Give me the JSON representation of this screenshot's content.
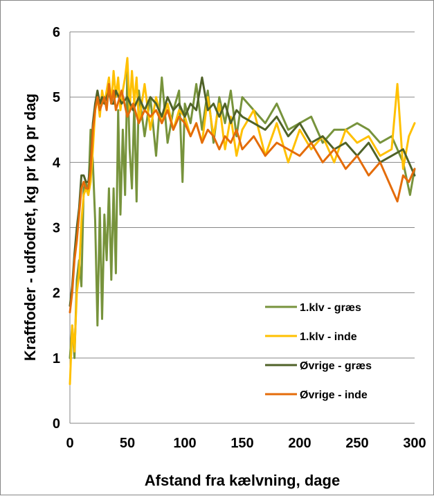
{
  "chart_data": {
    "type": "line",
    "title": "",
    "xlabel": "Afstand fra kælvning, dage",
    "ylabel": "Kraftfoder - udfodret, kg pr ko pr dag",
    "xlim": [
      0,
      300
    ],
    "ylim": [
      0,
      6
    ],
    "x_ticks": [
      "0",
      "50",
      "100",
      "150",
      "200",
      "250",
      "300"
    ],
    "y_ticks": [
      "0",
      "1",
      "2",
      "3",
      "4",
      "5",
      "6"
    ],
    "grid": "horizontal",
    "legend": "bottom-right",
    "series": [
      {
        "name": "1.klv - græs",
        "color": "#77933C",
        "x": [
          0,
          2,
          4,
          6,
          8,
          10,
          12,
          14,
          16,
          18,
          20,
          22,
          24,
          26,
          28,
          30,
          32,
          34,
          36,
          38,
          40,
          42,
          44,
          46,
          48,
          50,
          52,
          54,
          56,
          58,
          60,
          65,
          70,
          75,
          80,
          85,
          90,
          95,
          98,
          100,
          105,
          110,
          115,
          120,
          125,
          130,
          135,
          140,
          145,
          150,
          160,
          170,
          180,
          190,
          200,
          210,
          220,
          230,
          240,
          250,
          260,
          270,
          280,
          290,
          296,
          300
        ],
        "y": [
          1.0,
          1.5,
          1.0,
          2.2,
          2.5,
          2.1,
          3.6,
          3.7,
          3.5,
          4.5,
          4.0,
          3.1,
          1.5,
          3.3,
          1.6,
          3.2,
          2.5,
          3.6,
          2.2,
          3.6,
          2.3,
          4.8,
          3.2,
          4.5,
          3.5,
          5.4,
          4.2,
          3.6,
          4.9,
          3.4,
          5.1,
          4.4,
          5.0,
          4.1,
          5.3,
          4.3,
          4.8,
          5.1,
          3.7,
          4.9,
          4.6,
          5.2,
          4.5,
          5.1,
          4.3,
          5.0,
          4.6,
          5.1,
          4.4,
          5.0,
          4.8,
          4.6,
          4.9,
          4.5,
          4.6,
          4.7,
          4.3,
          4.5,
          4.5,
          4.6,
          4.5,
          4.3,
          4.4,
          4.0,
          3.5,
          3.9
        ]
      },
      {
        "name": "1.klv - inde",
        "color": "#FFC000",
        "x": [
          0,
          2,
          4,
          6,
          8,
          10,
          12,
          14,
          16,
          18,
          20,
          22,
          24,
          26,
          28,
          30,
          32,
          34,
          36,
          38,
          40,
          42,
          44,
          46,
          48,
          50,
          52,
          54,
          56,
          58,
          60,
          65,
          70,
          75,
          80,
          85,
          90,
          95,
          100,
          105,
          110,
          115,
          120,
          125,
          130,
          135,
          140,
          145,
          150,
          160,
          170,
          180,
          190,
          200,
          210,
          220,
          230,
          240,
          250,
          260,
          270,
          280,
          285,
          290,
          295,
          300
        ],
        "y": [
          0.6,
          1.5,
          1.1,
          2.0,
          2.3,
          3.1,
          3.5,
          3.6,
          3.5,
          3.7,
          4.2,
          4.8,
          5.0,
          4.7,
          5.1,
          4.9,
          5.1,
          5.3,
          4.9,
          5.4,
          5.0,
          5.3,
          4.8,
          5.1,
          5.3,
          5.6,
          4.8,
          5.4,
          4.9,
          5.3,
          4.6,
          5.2,
          4.5,
          5.0,
          4.6,
          4.9,
          4.5,
          4.8,
          4.7,
          4.4,
          4.6,
          4.3,
          5.0,
          4.4,
          4.9,
          4.2,
          4.7,
          4.1,
          4.5,
          4.8,
          4.1,
          4.6,
          4.0,
          4.5,
          4.2,
          4.4,
          4.0,
          4.5,
          4.3,
          4.4,
          4.1,
          4.2,
          5.2,
          3.9,
          4.4,
          4.6
        ]
      },
      {
        "name": "Øvrige - græs",
        "color": "#4F6228",
        "x": [
          0,
          2,
          4,
          6,
          8,
          10,
          12,
          14,
          16,
          18,
          20,
          22,
          24,
          26,
          28,
          30,
          32,
          34,
          36,
          38,
          40,
          45,
          50,
          55,
          60,
          65,
          70,
          75,
          80,
          85,
          90,
          95,
          100,
          105,
          110,
          115,
          120,
          125,
          130,
          135,
          140,
          145,
          150,
          160,
          170,
          180,
          190,
          200,
          210,
          220,
          230,
          240,
          250,
          260,
          270,
          280,
          290,
          300
        ],
        "y": [
          1.8,
          2.1,
          2.6,
          3.0,
          3.3,
          3.8,
          3.8,
          3.7,
          3.7,
          4.0,
          4.6,
          4.9,
          5.1,
          4.9,
          5.0,
          4.9,
          5.0,
          5.1,
          4.9,
          4.9,
          5.1,
          4.9,
          5.0,
          4.8,
          5.0,
          4.8,
          5.0,
          4.9,
          4.7,
          5.0,
          4.8,
          4.9,
          4.7,
          4.9,
          4.8,
          5.3,
          4.8,
          4.9,
          4.7,
          4.9,
          4.6,
          4.8,
          4.7,
          4.6,
          4.5,
          4.7,
          4.4,
          4.6,
          4.3,
          4.4,
          4.2,
          4.3,
          4.1,
          4.3,
          4.0,
          4.1,
          4.2,
          3.8
        ]
      },
      {
        "name": "Øvrige - inde",
        "color": "#E46C0A",
        "x": [
          0,
          2,
          4,
          6,
          8,
          10,
          12,
          14,
          16,
          18,
          20,
          22,
          24,
          26,
          28,
          30,
          32,
          34,
          36,
          38,
          40,
          45,
          50,
          55,
          60,
          65,
          70,
          75,
          80,
          85,
          90,
          95,
          100,
          105,
          110,
          115,
          120,
          125,
          130,
          135,
          140,
          145,
          150,
          160,
          170,
          180,
          190,
          200,
          210,
          220,
          230,
          240,
          250,
          260,
          270,
          280,
          285,
          290,
          295,
          300
        ],
        "y": [
          1.7,
          2.0,
          2.5,
          2.8,
          3.2,
          3.6,
          3.7,
          3.6,
          3.6,
          3.9,
          4.5,
          4.8,
          5.0,
          4.8,
          4.9,
          5.0,
          4.8,
          5.2,
          4.9,
          5.1,
          4.8,
          5.1,
          4.7,
          4.9,
          4.6,
          4.8,
          4.7,
          4.8,
          4.6,
          4.8,
          4.5,
          4.7,
          4.6,
          4.4,
          4.6,
          4.3,
          4.5,
          4.4,
          4.2,
          4.4,
          4.3,
          4.5,
          4.2,
          4.4,
          4.1,
          4.3,
          4.2,
          4.1,
          4.3,
          4.0,
          4.2,
          3.9,
          4.1,
          3.8,
          4.0,
          3.6,
          3.4,
          3.8,
          3.7,
          3.9
        ]
      }
    ]
  }
}
